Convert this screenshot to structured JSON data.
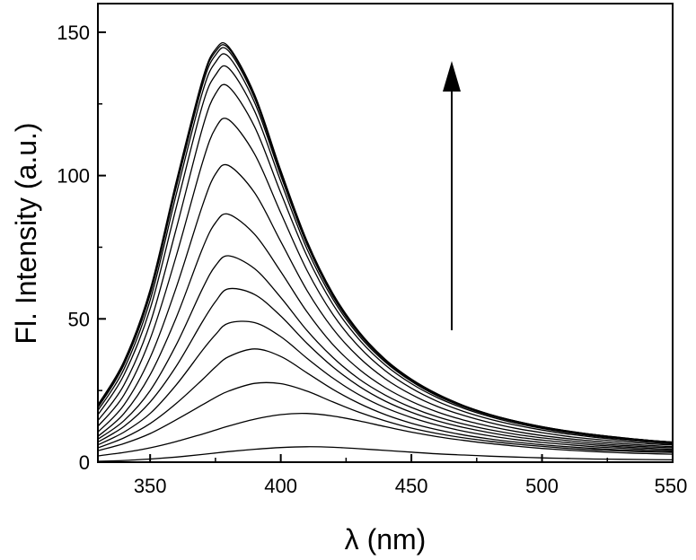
{
  "chart_data": {
    "type": "line",
    "title": "",
    "xlabel": "λ (nm)",
    "ylabel": "Fl. Intensity (a.u.)",
    "xlim": [
      330,
      550
    ],
    "ylim": [
      0,
      160
    ],
    "x_ticks": [
      350,
      400,
      450,
      500,
      550
    ],
    "y_ticks": [
      0,
      50,
      100,
      150
    ],
    "grid": false,
    "legend": "none",
    "annotation": "upward arrow indicating increasing intensity",
    "x": [
      330,
      340,
      350,
      360,
      370,
      375,
      380,
      390,
      400,
      410,
      420,
      430,
      440,
      450,
      460,
      470,
      480,
      490,
      500,
      510,
      520,
      530,
      540,
      550
    ],
    "series": [
      {
        "peak_x": 410,
        "values": [
          0.3,
          0.6,
          1.1,
          1.8,
          2.7,
          3.2,
          3.7,
          4.5,
          5.1,
          5.4,
          5.2,
          4.7,
          4.1,
          3.5,
          2.9,
          2.5,
          2.1,
          1.8,
          1.5,
          1.3,
          1.1,
          1.0,
          0.9,
          0.8
        ]
      },
      {
        "peak_x": 404,
        "values": [
          2.2,
          3.4,
          5.0,
          7.2,
          9.8,
          11.2,
          12.6,
          15.0,
          16.6,
          17.0,
          16.1,
          14.4,
          12.4,
          10.5,
          8.9,
          7.6,
          6.5,
          5.6,
          4.8,
          4.2,
          3.7,
          3.3,
          3.0,
          2.8
        ]
      },
      {
        "peak_x": 394,
        "values": [
          4.0,
          6.5,
          10.0,
          14.8,
          20.0,
          22.6,
          24.8,
          27.5,
          27.4,
          24.8,
          21.0,
          17.4,
          14.4,
          11.9,
          10.0,
          8.5,
          7.3,
          6.3,
          5.5,
          4.8,
          4.3,
          3.9,
          3.6,
          3.4
        ]
      },
      {
        "peak_x": 388,
        "values": [
          5.0,
          8.5,
          13.5,
          20.5,
          28.8,
          33.2,
          36.8,
          39.5,
          36.9,
          31.2,
          25.4,
          20.5,
          16.6,
          13.6,
          11.3,
          9.5,
          8.1,
          7.0,
          6.1,
          5.4,
          4.8,
          4.3,
          3.9,
          3.7
        ]
      },
      {
        "peak_x": 384,
        "values": [
          6.0,
          10.5,
          17.0,
          27.0,
          39.0,
          44.5,
          48.5,
          48.7,
          43.8,
          36.3,
          29.3,
          23.5,
          19.0,
          15.6,
          12.9,
          10.8,
          9.2,
          7.9,
          6.9,
          6.1,
          5.4,
          4.9,
          4.4,
          4.1
        ]
      },
      {
        "peak_x": 381,
        "values": [
          7.0,
          12.5,
          21.0,
          33.5,
          49.0,
          56.0,
          60.5,
          58.5,
          51.0,
          41.5,
          33.2,
          26.5,
          21.3,
          17.4,
          14.4,
          12.1,
          10.3,
          8.8,
          7.7,
          6.8,
          6.0,
          5.4,
          4.9,
          4.5
        ]
      },
      {
        "peak_x": 379,
        "values": [
          8.0,
          14.5,
          25.0,
          41.0,
          60.5,
          68.5,
          72.0,
          67.5,
          57.5,
          46.0,
          36.5,
          29.0,
          23.4,
          19.1,
          15.8,
          13.3,
          11.3,
          9.7,
          8.5,
          7.5,
          6.6,
          5.9,
          5.4,
          5.0
        ]
      },
      {
        "peak_x": 377,
        "values": [
          9.0,
          17.0,
          30.5,
          50.5,
          74.5,
          83.5,
          86.5,
          79.5,
          66.5,
          52.5,
          41.0,
          32.4,
          26.0,
          21.2,
          17.5,
          14.7,
          12.5,
          10.7,
          9.3,
          8.2,
          7.3,
          6.5,
          5.9,
          5.4
        ]
      },
      {
        "peak_x": 376,
        "values": [
          10.5,
          20.0,
          36.5,
          61.0,
          89.5,
          100.5,
          103.5,
          94.0,
          77.0,
          60.0,
          46.5,
          36.5,
          29.1,
          23.6,
          19.4,
          16.3,
          13.8,
          11.8,
          10.3,
          9.0,
          8.0,
          7.2,
          6.5,
          6.0
        ]
      },
      {
        "peak_x": 376,
        "values": [
          12.5,
          23.5,
          43.0,
          72.0,
          104.5,
          116.5,
          119.5,
          107.5,
          87.0,
          67.0,
          51.5,
          40.2,
          31.9,
          25.8,
          21.2,
          17.7,
          15.0,
          12.9,
          11.2,
          9.8,
          8.7,
          7.8,
          7.0,
          6.4
        ]
      },
      {
        "peak_x": 376,
        "values": [
          14.5,
          27.0,
          48.5,
          81.5,
          116.5,
          128.5,
          131.0,
          117.0,
          94.0,
          72.0,
          55.0,
          42.8,
          33.9,
          27.4,
          22.5,
          18.8,
          15.9,
          13.6,
          11.8,
          10.3,
          9.1,
          8.2,
          7.4,
          6.7
        ]
      },
      {
        "peak_x": 376,
        "values": [
          16.5,
          30.5,
          53.5,
          89.0,
          124.5,
          135.0,
          137.5,
          122.5,
          98.0,
          74.5,
          56.8,
          44.1,
          34.9,
          28.2,
          23.1,
          19.3,
          16.3,
          14.0,
          12.1,
          10.6,
          9.4,
          8.4,
          7.6,
          6.9
        ]
      },
      {
        "peak_x": 376,
        "values": [
          18.0,
          32.5,
          56.5,
          93.5,
          129.0,
          139.5,
          141.5,
          125.5,
          100.0,
          76.0,
          57.8,
          44.8,
          35.4,
          28.6,
          23.4,
          19.5,
          16.5,
          14.1,
          12.2,
          10.7,
          9.5,
          8.5,
          7.6,
          6.9
        ]
      },
      {
        "peak_x": 376,
        "values": [
          19.0,
          34.0,
          58.5,
          96.0,
          131.5,
          142.0,
          143.5,
          127.0,
          101.0,
          76.7,
          58.3,
          45.1,
          35.6,
          28.8,
          23.6,
          19.6,
          16.6,
          14.2,
          12.3,
          10.8,
          9.6,
          8.5,
          7.7,
          7.0
        ]
      },
      {
        "peak_x": 376,
        "values": [
          19.5,
          34.8,
          59.5,
          97.2,
          132.8,
          143.2,
          144.4,
          127.8,
          101.6,
          77.1,
          58.6,
          45.3,
          35.8,
          28.9,
          23.7,
          19.7,
          16.7,
          14.3,
          12.4,
          10.8,
          9.6,
          8.6,
          7.7,
          7.0
        ]
      },
      {
        "peak_x": 376,
        "values": [
          20.0,
          35.3,
          60.2,
          98.0,
          133.5,
          144.0,
          145.0,
          128.3,
          101.9,
          77.3,
          58.8,
          45.5,
          35.9,
          29.0,
          23.8,
          19.8,
          16.7,
          14.3,
          12.4,
          10.9,
          9.6,
          8.6,
          7.7,
          7.0
        ]
      }
    ]
  }
}
